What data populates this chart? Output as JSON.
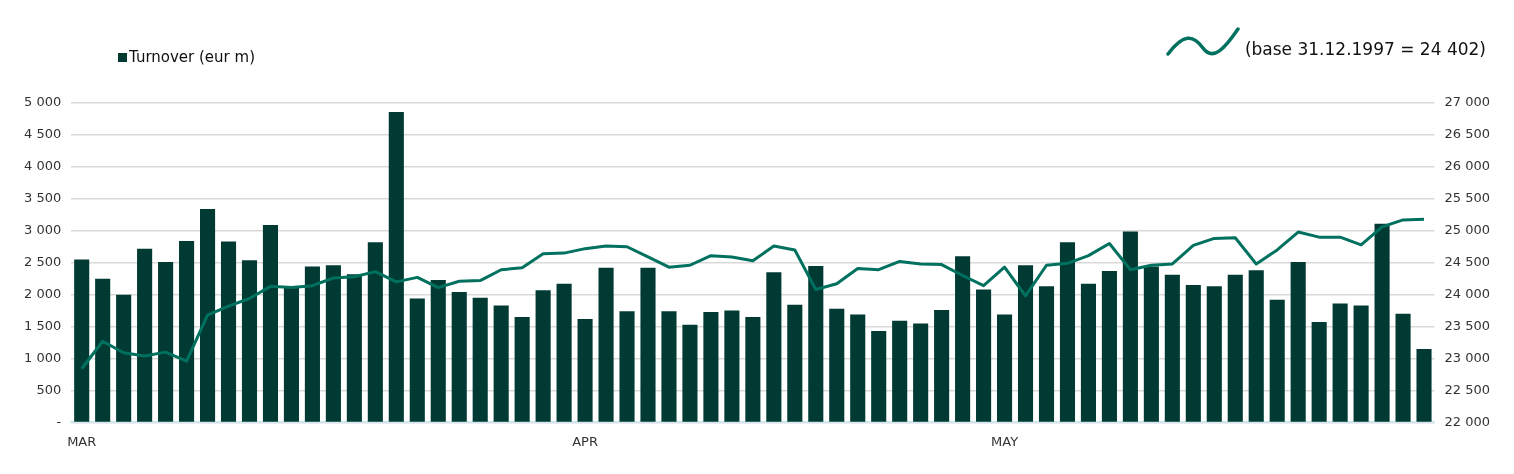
{
  "chart_data": {
    "type": "bar",
    "categories": [
      "MAR",
      null,
      null,
      null,
      null,
      null,
      null,
      null,
      null,
      null,
      null,
      null,
      null,
      null,
      null,
      null,
      null,
      null,
      null,
      null,
      null,
      null,
      null,
      null,
      "APR",
      null,
      null,
      null,
      null,
      null,
      null,
      null,
      null,
      null,
      null,
      null,
      null,
      null,
      null,
      null,
      null,
      null,
      null,
      null,
      "MAY",
      null,
      null,
      null,
      null,
      null,
      null,
      null,
      null,
      null,
      null,
      null,
      null,
      null,
      null,
      null,
      null,
      null,
      null,
      null,
      null
    ],
    "series": [
      {
        "name": "Turnover (eur m)",
        "color": "#003a33",
        "values": [
          2550,
          2250,
          2000,
          2720,
          2510,
          2840,
          3340,
          2830,
          2540,
          3090,
          2130,
          2440,
          2460,
          2320,
          2820,
          4860,
          1940,
          2230,
          2040,
          1950,
          1830,
          1650,
          2070,
          2170,
          1620,
          2420,
          1740,
          2420,
          1740,
          1530,
          1730,
          1750,
          1650,
          2350,
          1840,
          2450,
          1780,
          1690,
          1430,
          1590,
          1550,
          1760,
          2600,
          2080,
          1690,
          2460,
          2130,
          2820,
          2170,
          2370,
          2990,
          2440,
          2310,
          2150,
          2130,
          2310,
          2380,
          1920,
          2510,
          1570,
          1860,
          1830,
          3110,
          1700,
          1150
        ]
      },
      {
        "type": "line",
        "name": "(base 31.12.1997 = 24 402)",
        "color": "#00705f",
        "axis": "y2",
        "values": [
          22840,
          23270,
          23090,
          23040,
          23100,
          22960,
          23680,
          23820,
          23940,
          24130,
          24110,
          24140,
          24260,
          24280,
          24360,
          24200,
          24270,
          24110,
          24210,
          24220,
          24390,
          24420,
          24640,
          24650,
          24720,
          24760,
          24750,
          24590,
          24430,
          24460,
          24610,
          24590,
          24530,
          24760,
          24700,
          24080,
          24170,
          24410,
          24390,
          24520,
          24480,
          24470,
          24300,
          24140,
          24430,
          23980,
          24460,
          24490,
          24610,
          24800,
          24390,
          24460,
          24480,
          24770,
          24880,
          24890,
          24480,
          24700,
          24980,
          24900,
          24900,
          24780,
          25060,
          25170,
          25180
        ]
      }
    ],
    "ylim": [
      0,
      5000
    ],
    "yticks": [
      {
        "value": 0,
        "label": "-"
      },
      {
        "value": 500,
        "label": "500"
      },
      {
        "value": 1000,
        "label": "1 000"
      },
      {
        "value": 1500,
        "label": "1 500"
      },
      {
        "value": 2000,
        "label": "2 000"
      },
      {
        "value": 2500,
        "label": "2 500"
      },
      {
        "value": 3000,
        "label": "3 000"
      },
      {
        "value": 3500,
        "label": "3 500"
      },
      {
        "value": 4000,
        "label": "4 000"
      },
      {
        "value": 4500,
        "label": "4 500"
      },
      {
        "value": 5000,
        "label": "5 000"
      }
    ],
    "y2lim": [
      22000,
      27000
    ],
    "y2ticks": [
      {
        "value": 22000,
        "label": "22 000"
      },
      {
        "value": 22500,
        "label": "22 500"
      },
      {
        "value": 23000,
        "label": "23 000"
      },
      {
        "value": 23500,
        "label": "23 500"
      },
      {
        "value": 24000,
        "label": "24 000"
      },
      {
        "value": 24500,
        "label": "24 500"
      },
      {
        "value": 25000,
        "label": "25 000"
      },
      {
        "value": 25500,
        "label": "25 500"
      },
      {
        "value": 26000,
        "label": "26 000"
      },
      {
        "value": 26500,
        "label": "26 500"
      },
      {
        "value": 27000,
        "label": "27 000"
      }
    ],
    "grid": "y",
    "legend": "top",
    "marker": "none"
  }
}
